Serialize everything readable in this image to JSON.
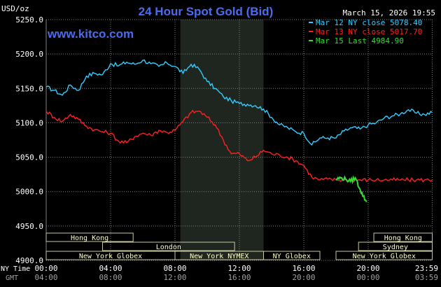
{
  "chart_data": {
    "type": "line",
    "title": "24 Hour Spot Gold (Bid)",
    "watermark": "www.kitco.com",
    "y_unit": "USD/oz",
    "datetime": "March 15, 2026 19:55",
    "ylim": [
      4900,
      5250
    ],
    "xlim": [
      0,
      24
    ],
    "y_ticks": [
      "5250.0",
      "5200.0",
      "5150.0",
      "5100.0",
      "5050.0",
      "5000.0",
      "4950.0",
      "4900.0"
    ],
    "x_ticks_ny": [
      "00:00",
      "04:00",
      "08:00",
      "12:00",
      "16:00",
      "20:00",
      "23:59"
    ],
    "x_ticks_gmt": [
      "04:00",
      "08:00",
      "12:00",
      "16:00",
      "20:00",
      "00:00",
      "03:59"
    ],
    "x_label_ny": "NY Time",
    "x_label_gmt": "GMT",
    "grid": true,
    "legend_position": "top-right",
    "colors": {
      "background": "#000000",
      "grid": "#808080",
      "title": "#4a6cf0",
      "ny_shade": "#1f261f",
      "session_border": "#c8c8a0",
      "session_text": "#ffffcc"
    },
    "series": [
      {
        "name": "Mar 12 NY close 5078.40",
        "color": "#33ccff",
        "x": [
          0,
          0.5,
          1,
          1.5,
          2,
          2.5,
          3,
          3.5,
          4,
          4.5,
          5,
          5.5,
          6,
          6.5,
          7,
          7.5,
          8,
          8.5,
          9,
          9.5,
          10,
          10.5,
          11,
          11.5,
          12,
          12.5,
          13,
          13.5,
          14,
          14.5,
          15,
          15.5,
          16,
          16.5,
          17,
          17.5,
          18,
          18.5,
          19,
          19.5,
          20,
          20.5,
          21,
          21.5,
          22,
          22.5,
          23,
          23.5,
          23.98
        ],
        "values": [
          5152,
          5147,
          5140,
          5155,
          5147,
          5168,
          5172,
          5170,
          5186,
          5183,
          5188,
          5185,
          5191,
          5186,
          5182,
          5187,
          5182,
          5172,
          5185,
          5178,
          5160,
          5150,
          5138,
          5132,
          5128,
          5127,
          5125,
          5120,
          5108,
          5097,
          5093,
          5087,
          5085,
          5068,
          5078,
          5078,
          5078,
          5088,
          5093,
          5091,
          5097,
          5100,
          5107,
          5110,
          5113,
          5119,
          5114,
          5112,
          5115
        ]
      },
      {
        "name": "Mar 13 NY close 5017.70",
        "color": "#ff2020",
        "x": [
          0,
          0.5,
          1,
          1.5,
          2,
          2.5,
          3,
          3.5,
          4,
          4.5,
          5,
          5.5,
          6,
          6.5,
          7,
          7.5,
          8,
          8.5,
          9,
          9.5,
          10,
          10.5,
          11,
          11.5,
          12,
          12.5,
          13,
          13.5,
          14,
          14.5,
          15,
          15.5,
          16,
          16.5,
          17,
          17.5,
          18,
          18.5,
          19,
          19.5,
          20,
          20.5,
          21,
          21.5,
          22,
          22.5,
          23,
          23.5,
          23.98
        ],
        "values": [
          5117,
          5108,
          5102,
          5112,
          5105,
          5095,
          5090,
          5087,
          5085,
          5073,
          5071,
          5080,
          5085,
          5082,
          5089,
          5086,
          5089,
          5102,
          5115,
          5117,
          5108,
          5097,
          5075,
          5055,
          5055,
          5045,
          5050,
          5060,
          5055,
          5053,
          5050,
          5045,
          5038,
          5021,
          5017,
          5018,
          5017,
          5017,
          5017,
          5017,
          5017,
          5017,
          5017,
          5017,
          5017,
          5017,
          5017,
          5017,
          5017
        ]
      },
      {
        "name": "Mar 15 Last 4984.90",
        "color": "#33dd33",
        "x": [
          18,
          18.3,
          18.6,
          18.9,
          19.2,
          19.5,
          19.7,
          19.9
        ],
        "values": [
          5018,
          5020,
          5018,
          5015,
          5020,
          5003,
          4993,
          4984.9
        ]
      }
    ],
    "sessions": [
      {
        "label": "Hong Kong",
        "row": 0,
        "x_start": 0,
        "x_end": 5.4
      },
      {
        "label": "Hong Kong",
        "row": 0,
        "x_start": 20.35,
        "x_end": 23.98
      },
      {
        "label": "London",
        "row": 1,
        "x_start": 3.5,
        "x_end": 11.7
      },
      {
        "label": "Sydney",
        "row": 1,
        "x_start": 19.4,
        "x_end": 23.98
      },
      {
        "label": "New York Globex",
        "row": 2,
        "x_start": 0,
        "x_end": 8.0
      },
      {
        "label": "New York NYMEX",
        "row": 2,
        "x_start": 8.0,
        "x_end": 13.5
      },
      {
        "label": "NY Globex",
        "row": 2,
        "x_start": 13.5,
        "x_end": 17.0
      },
      {
        "label": "New York Globex",
        "row": 2,
        "x_start": 18.0,
        "x_end": 23.98
      }
    ],
    "highlight_band": {
      "x_start": 8.33,
      "x_end": 13.5
    }
  }
}
